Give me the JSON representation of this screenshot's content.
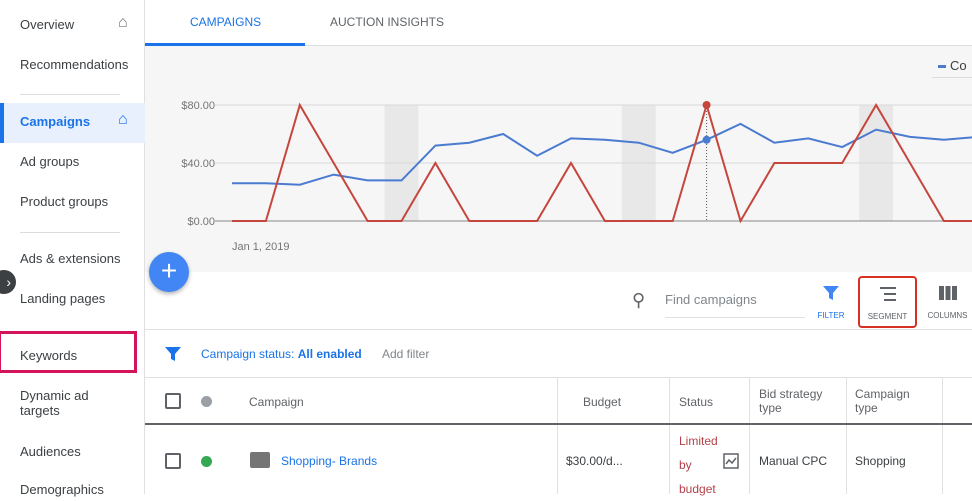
{
  "sidebar": {
    "items": [
      {
        "label": "Overview",
        "home": true
      },
      {
        "label": "Recommendations"
      },
      {
        "label": "Campaigns",
        "home": true,
        "active": true
      },
      {
        "label": "Ad groups"
      },
      {
        "label": "Product groups"
      },
      {
        "label": "Ads & extensions"
      },
      {
        "label": "Landing pages"
      },
      {
        "label": "Keywords",
        "highlighted": true
      },
      {
        "label": "Dynamic ad targets"
      },
      {
        "label": "Audiences"
      },
      {
        "label": "Demographics"
      }
    ]
  },
  "tabs": [
    {
      "label": "CAMPAIGNS",
      "active": true
    },
    {
      "label": "AUCTION INSIGHTS"
    }
  ],
  "chart_data": {
    "type": "line",
    "legend": "Co",
    "x_start_label": "Jan 1, 2019",
    "yticks": [
      "$80.00",
      "$40.00",
      "$0.00"
    ],
    "ylim": [
      0,
      80
    ],
    "series": [
      {
        "color": "#4a7bd0",
        "values": [
          26,
          26,
          25,
          32,
          28,
          28,
          52,
          54,
          60,
          45,
          57,
          56,
          54,
          47,
          56,
          67,
          54,
          57,
          51,
          63,
          58,
          56,
          58
        ]
      },
      {
        "color": "#c5463c",
        "values": [
          0,
          0,
          80,
          40,
          0,
          0,
          40,
          0,
          0,
          0,
          40,
          0,
          0,
          0,
          80,
          0,
          40,
          40,
          40,
          80,
          40,
          0,
          0
        ]
      }
    ]
  },
  "toolbar": {
    "search_placeholder": "Find campaigns",
    "filter": "FILTER",
    "segment": "SEGMENT",
    "columns": "COLUMNS"
  },
  "filter": {
    "label": "Campaign status: ",
    "value": "All enabled",
    "add": "Add filter"
  },
  "table": {
    "headers": [
      "Campaign",
      "Budget",
      "Status",
      "Bid strategy type",
      "Campaign type"
    ],
    "rows": [
      {
        "campaign": "Shopping- Brands",
        "budget": "$30.00/d...",
        "status": [
          "Limited",
          "by",
          "budget"
        ],
        "bid": "Manual CPC",
        "type": "Shopping"
      }
    ]
  },
  "colors": {
    "accent": "#1a73e8",
    "highlight": "#d4145a",
    "segment_box": "#d93025",
    "enabled": "#34a853"
  }
}
